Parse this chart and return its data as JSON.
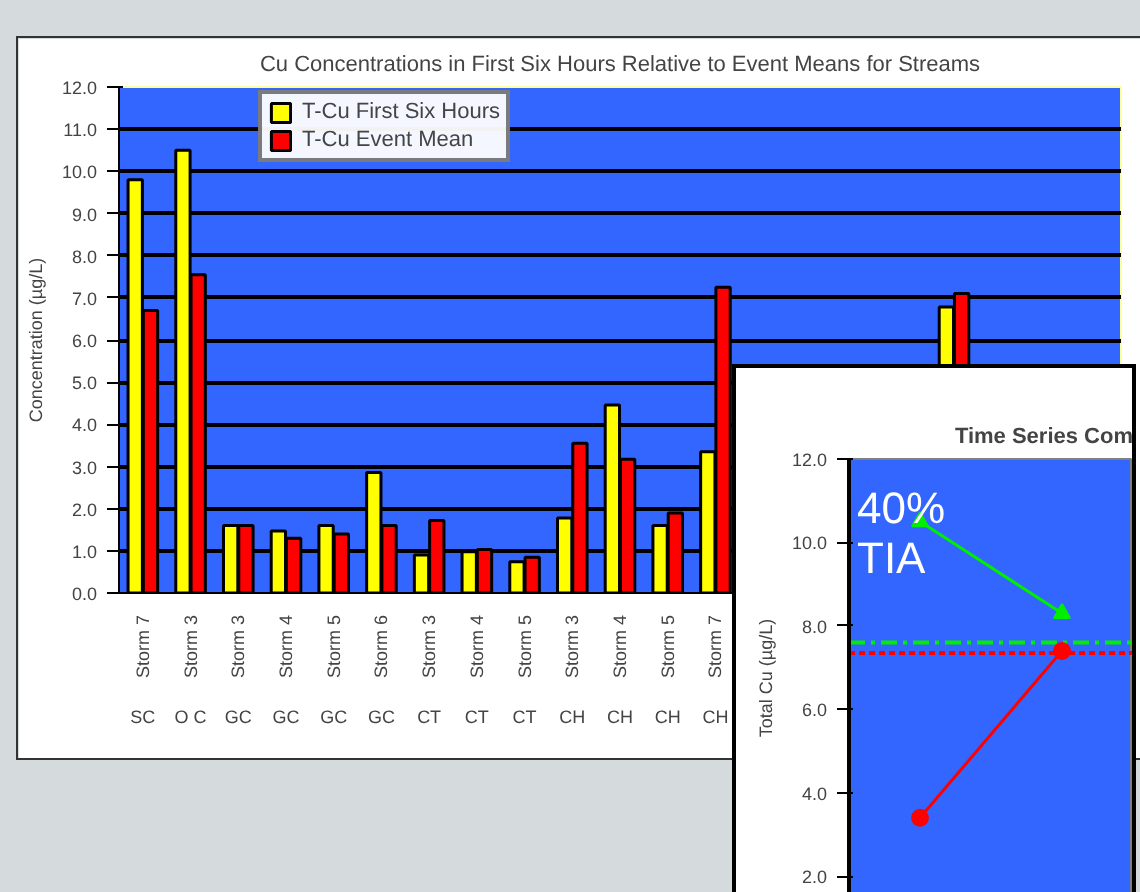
{
  "chart_data": [
    {
      "type": "bar",
      "title": "Cu Concentrations in First Six Hours Relative to Event Means for Streams",
      "ylabel": "Concentration (µg/L)",
      "categories": [
        "Storm 7\nSC",
        "Storm 3\nO C",
        "Storm 3\nGC",
        "Storm 4\nGC",
        "Storm 5\nGC",
        "Storm 6\nGC",
        "Storm 3\nCT",
        "Storm 4\nCT",
        "Storm 5\nCT",
        "Storm 3\nCH",
        "Storm 4\nCH",
        "Storm 5\nCH",
        "Storm 7\nCH",
        null,
        null,
        null,
        null,
        null,
        null,
        null,
        null
      ],
      "series": [
        {
          "name": "T-Cu First Six Hours",
          "color": "#ffff00",
          "values": [
            9.8,
            10.5,
            1.6,
            1.47,
            1.6,
            2.86,
            0.9,
            0.98,
            0.74,
            1.78,
            4.46,
            1.6,
            3.35,
            null,
            null,
            null,
            null,
            6.78,
            null,
            null,
            null
          ]
        },
        {
          "name": "T-Cu Event Mean",
          "color": "#ff0000",
          "values": [
            6.7,
            7.55,
            1.6,
            1.3,
            1.4,
            1.6,
            1.72,
            1.03,
            0.85,
            3.55,
            3.17,
            1.9,
            7.25,
            null,
            null,
            null,
            null,
            7.1,
            null,
            null,
            null
          ]
        }
      ],
      "ylim": [
        0,
        12
      ],
      "yticks": [
        {
          "value": 0,
          "label": "0.0"
        },
        {
          "value": 1,
          "label": "1.0"
        },
        {
          "value": 2,
          "label": "2.0"
        },
        {
          "value": 3,
          "label": "3.0"
        },
        {
          "value": 4,
          "label": "4.0"
        },
        {
          "value": 5,
          "label": "5.0"
        },
        {
          "value": 6,
          "label": "6.0"
        },
        {
          "value": 7,
          "label": "7.0"
        },
        {
          "value": 8,
          "label": "8.0"
        },
        {
          "value": 9,
          "label": "9.0"
        },
        {
          "value": 10,
          "label": "10.0"
        },
        {
          "value": 11,
          "label": "11.0"
        },
        {
          "value": 12,
          "label": "12.0"
        }
      ],
      "grid": "y",
      "legend": "top left"
    },
    {
      "type": "line",
      "title": "Time Series Com",
      "ylabel": "Total Cu (µg/L)",
      "categories": [
        null,
        null
      ],
      "series": [
        {
          "color": "#00ee00",
          "marker": "triangle",
          "values": [
            10.5,
            8.3
          ]
        },
        {
          "color": "#ff0000",
          "marker": "circle",
          "values": [
            3.4,
            7.4
          ]
        }
      ],
      "ylim": [
        1.5,
        12
      ],
      "yticks": [
        {
          "value": 2,
          "label": "2.0"
        },
        {
          "value": 4,
          "label": "4.0"
        },
        {
          "value": 6,
          "label": "6.0"
        },
        {
          "value": 8,
          "label": "8.0"
        },
        {
          "value": 10,
          "label": "10.0"
        },
        {
          "value": 12,
          "label": "12.0"
        }
      ],
      "ref_lines": [
        {
          "axis": "y",
          "value": 7.6,
          "color": "#00ee00",
          "line_style": "dashed"
        },
        {
          "axis": "y",
          "value": 7.35,
          "color": "#ff0000",
          "line_style": "dotted"
        }
      ],
      "annotations": [
        "40%\nTIA"
      ],
      "tick_labels": "y",
      "grid": false
    }
  ]
}
